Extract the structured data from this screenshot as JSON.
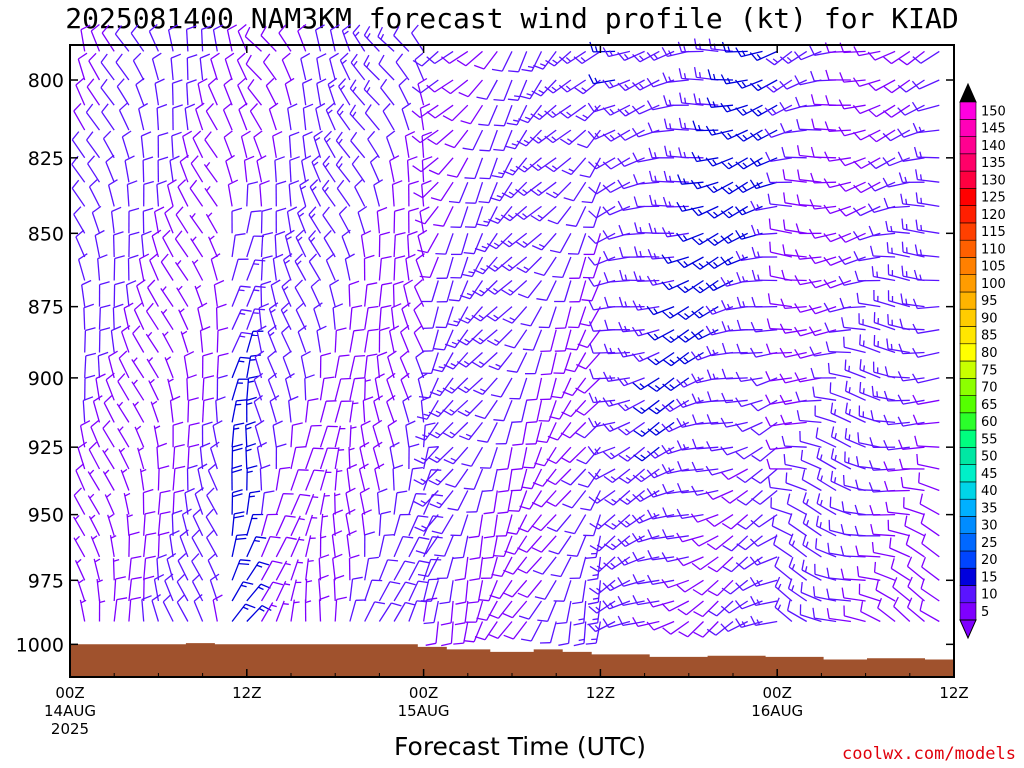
{
  "chart_data": {
    "type": "wind-barb-time-height",
    "title": "2025081400 NAM3KM forecast wind profile (kt) for KIAD",
    "xlabel": "Forecast Time (UTC)",
    "ylabel": "",
    "credit": "coolwx.com/models",
    "x_ticks": [
      {
        "hour": 0,
        "line1": "00Z",
        "line2": "14AUG",
        "line3": "2025"
      },
      {
        "hour": 12,
        "line1": "12Z",
        "line2": "",
        "line3": ""
      },
      {
        "hour": 24,
        "line1": "00Z",
        "line2": "15AUG",
        "line3": ""
      },
      {
        "hour": 36,
        "line1": "12Z",
        "line2": "",
        "line3": ""
      },
      {
        "hour": 48,
        "line1": "00Z",
        "line2": "16AUG",
        "line3": ""
      },
      {
        "hour": 60,
        "line1": "12Z",
        "line2": "",
        "line3": ""
      }
    ],
    "y_ticks": [
      "800",
      "825",
      "850",
      "875",
      "900",
      "925",
      "950",
      "975",
      "1000"
    ],
    "x_range_hours": [
      0,
      60
    ],
    "y_range_hpa": [
      789,
      1013
    ],
    "y_scale": "log-pressure",
    "surface_pressure_hpa": [
      1000,
      1000,
      1000,
      1000,
      1000,
      1000,
      1000,
      1000,
      999.5,
      999.5,
      1000,
      1000,
      1000,
      1000,
      1000,
      1000,
      1000,
      1000,
      1000,
      1000,
      1000,
      1000,
      1000,
      1000,
      1001,
      1001,
      1002,
      1002,
      1002,
      1003,
      1003,
      1003,
      1002,
      1002,
      1003,
      1003,
      1004,
      1004,
      1004,
      1004,
      1005,
      1005,
      1005,
      1005,
      1004.5,
      1004.5,
      1004.5,
      1004.5,
      1005,
      1005,
      1005,
      1005,
      1006,
      1006,
      1006,
      1005.5,
      1005.5,
      1005.5,
      1005.5,
      1006,
      1006
    ],
    "barb_levels_hpa": [
      791,
      800,
      808,
      816,
      825,
      833,
      841,
      850,
      858,
      866,
      875,
      883,
      891,
      900,
      908,
      916,
      925,
      933,
      941,
      950,
      958,
      966,
      975,
      983,
      991
    ],
    "barb_times_hours": [
      1,
      2,
      3,
      4,
      5,
      6,
      7,
      8,
      9,
      10,
      11,
      12,
      13,
      14,
      15,
      16,
      17,
      18,
      19,
      20,
      21,
      22,
      23,
      24,
      25,
      26,
      27,
      28,
      29,
      30,
      31,
      32,
      33,
      34,
      35,
      36,
      37,
      38,
      39,
      40,
      41,
      42,
      43,
      44,
      45,
      46,
      47,
      48,
      49,
      50,
      51,
      52,
      53,
      54,
      55,
      56,
      57,
      58,
      59
    ],
    "wind_field": {
      "description": "approximate: winds ~5-15 kt; northerly-northwesterly low levels day 1, veering to southwesterly/westerly aloft, 15-25 kt pockets near 12Z 14AUG (925-975 hPa) and 18Z 15AUG (825-925 hPa)",
      "phases": [
        {
          "hours": [
            0,
            10
          ],
          "dir_low": 350,
          "dir_high": 340,
          "speed_low": 9,
          "speed_high": 10
        },
        {
          "hours": [
            10,
            12
          ],
          "dir_low": 30,
          "dir_high": 350,
          "speed_low": 18,
          "speed_high": 10
        },
        {
          "hours": [
            12,
            24
          ],
          "dir_low": 20,
          "dir_high": 330,
          "speed_low": 9,
          "speed_high": 11
        },
        {
          "hours": [
            24,
            36
          ],
          "dir_low": 200,
          "dir_high": 220,
          "speed_low": 10,
          "speed_high": 12
        },
        {
          "hours": [
            36,
            48
          ],
          "dir_low": 240,
          "dir_high": 260,
          "speed_low": 11,
          "speed_high": 15
        },
        {
          "hours": [
            48,
            60
          ],
          "dir_low": 300,
          "dir_high": 250,
          "speed_low": 10,
          "speed_high": 11
        }
      ]
    },
    "colorbar": {
      "labels": [
        "5",
        "10",
        "15",
        "20",
        "25",
        "30",
        "35",
        "40",
        "45",
        "50",
        "55",
        "60",
        "65",
        "70",
        "75",
        "80",
        "85",
        "90",
        "95",
        "100",
        "105",
        "110",
        "115",
        "120",
        "125",
        "130",
        "135",
        "140",
        "145",
        "150"
      ],
      "colors": [
        "#7f00ff",
        "#5a14ff",
        "#0000dd",
        "#0045ff",
        "#0068ff",
        "#008cff",
        "#00b0ff",
        "#00d5e8",
        "#00f0c8",
        "#00e7a3",
        "#00ff7f",
        "#2bff2b",
        "#55ff00",
        "#8cff00",
        "#c8ff00",
        "#ffff00",
        "#ffe600",
        "#ffcc00",
        "#ffb400",
        "#ff9c00",
        "#ff8000",
        "#ff6000",
        "#ff4000",
        "#ff1f00",
        "#ff0000",
        "#ff0040",
        "#ff0068",
        "#ff0090",
        "#ff00b8",
        "#ff00e0"
      ],
      "below_color": "#7f00ff",
      "above_color": "#000000"
    }
  },
  "colors": {
    "ground": "#a0522d",
    "barb_default": "#7f00ff",
    "frame": "#000000",
    "credit": "#e0000b"
  }
}
